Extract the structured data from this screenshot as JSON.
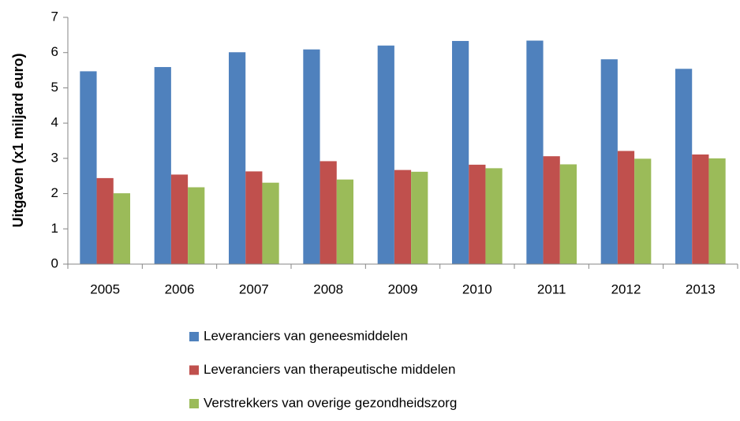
{
  "chart_data": {
    "type": "bar",
    "y_label": "Uitgaven (x1 miljard euro)",
    "categories": [
      "2005",
      "2006",
      "2007",
      "2008",
      "2009",
      "2010",
      "2011",
      "2012",
      "2013"
    ],
    "series": [
      {
        "name": "Leveranciers van geneesmiddelen",
        "color": "#4f81bd",
        "values": [
          5.47,
          5.59,
          6.01,
          6.09,
          6.2,
          6.33,
          6.34,
          5.81,
          5.54
        ]
      },
      {
        "name": "Leveranciers van therapeutische middelen",
        "color": "#c0504d",
        "values": [
          2.44,
          2.54,
          2.63,
          2.92,
          2.67,
          2.82,
          3.06,
          3.21,
          3.11
        ]
      },
      {
        "name": "Verstrekkers van overige gezondheidszorg",
        "color": "#9bbb59",
        "values": [
          2.01,
          2.18,
          2.31,
          2.4,
          2.62,
          2.72,
          2.83,
          2.99,
          3.0
        ]
      }
    ],
    "ylim": [
      0,
      7
    ],
    "yticks": [
      0,
      1,
      2,
      3,
      4,
      5,
      6,
      7
    ],
    "grid": false,
    "legend": "bottom"
  }
}
